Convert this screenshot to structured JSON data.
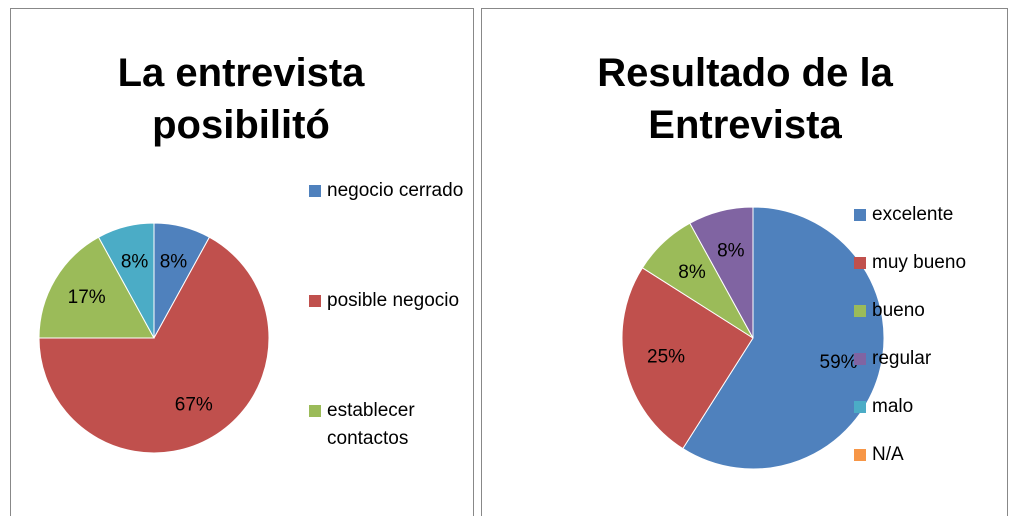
{
  "chart_data": [
    {
      "type": "pie",
      "title": "La entrevista posibilitó",
      "categories": [
        "negocio cerrado",
        "posible negocio",
        "establecer contactos",
        null
      ],
      "values": [
        8,
        67,
        17,
        8
      ],
      "colors": [
        "#4f81bd",
        "#c0504d",
        "#9bbb59",
        "#4bacc6"
      ],
      "legend": "right"
    },
    {
      "type": "pie",
      "title": "Resultado de la Entrevista",
      "categories": [
        "excelente",
        "muy bueno",
        "bueno",
        "regular",
        "malo",
        "N/A"
      ],
      "values": [
        59,
        25,
        8,
        8,
        0,
        0
      ],
      "colors": [
        "#4f81bd",
        "#c0504d",
        "#9bbb59",
        "#8064a2",
        "#4bacc6",
        "#f79646"
      ],
      "legend": "right"
    }
  ]
}
